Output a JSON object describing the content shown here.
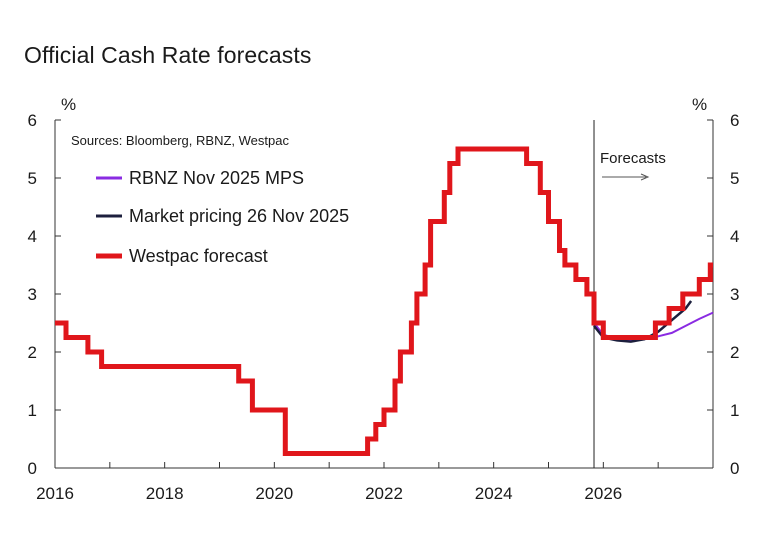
{
  "chart_data": {
    "type": "line",
    "title": "Official Cash Rate forecasts",
    "source": "Sources: Bloomberg, RBNZ, Westpac",
    "ylabel_left": "%",
    "ylabel_right": "%",
    "xlim": [
      2016,
      2028
    ],
    "ylim": [
      0,
      6
    ],
    "x_ticks": [
      2016,
      2018,
      2020,
      2022,
      2024,
      2026
    ],
    "y_ticks": [
      0,
      1,
      2,
      3,
      4,
      5,
      6
    ],
    "forecast_start": 2025.83,
    "forecast_label": "Forecasts",
    "series": [
      {
        "name": "RBNZ Nov 2025 MPS",
        "color": "#8a2be2",
        "x": [
          2025.83,
          2026.0,
          2026.25,
          2026.5,
          2026.75,
          2027.0,
          2027.25,
          2027.5,
          2027.75,
          2028.0
        ],
        "y": [
          2.5,
          2.3,
          2.22,
          2.2,
          2.22,
          2.27,
          2.33,
          2.45,
          2.57,
          2.68
        ]
      },
      {
        "name": "Market pricing 26 Nov 2025",
        "color": "#1c1f3d",
        "x": [
          2025.83,
          2026.0,
          2026.25,
          2026.5,
          2026.75,
          2027.0,
          2027.25,
          2027.5,
          2027.6
        ],
        "y": [
          2.45,
          2.25,
          2.2,
          2.18,
          2.22,
          2.35,
          2.55,
          2.75,
          2.88
        ]
      },
      {
        "name": "Westpac forecast",
        "color": "#e0161b",
        "step": true,
        "x": [
          2016.0,
          2016.2,
          2016.6,
          2016.85,
          2019.35,
          2019.6,
          2020.0,
          2020.2,
          2021.7,
          2021.85,
          2022.0,
          2022.2,
          2022.3,
          2022.5,
          2022.6,
          2022.75,
          2022.85,
          2023.1,
          2023.2,
          2023.35,
          2024.6,
          2024.75,
          2024.85,
          2025.0,
          2025.2,
          2025.3,
          2025.5,
          2025.7,
          2025.83,
          2026.0,
          2026.5,
          2026.95,
          2027.2,
          2027.45,
          2027.75,
          2027.95,
          2028.0
        ],
        "y": [
          2.5,
          2.25,
          2.0,
          1.75,
          1.5,
          1.0,
          1.0,
          0.25,
          0.5,
          0.75,
          1.0,
          1.5,
          2.0,
          2.5,
          3.0,
          3.5,
          4.25,
          4.75,
          5.25,
          5.5,
          5.25,
          5.25,
          4.75,
          4.25,
          3.75,
          3.5,
          3.25,
          3.0,
          2.5,
          2.25,
          2.25,
          2.5,
          2.75,
          3.0,
          3.25,
          3.5,
          3.5
        ]
      }
    ]
  }
}
